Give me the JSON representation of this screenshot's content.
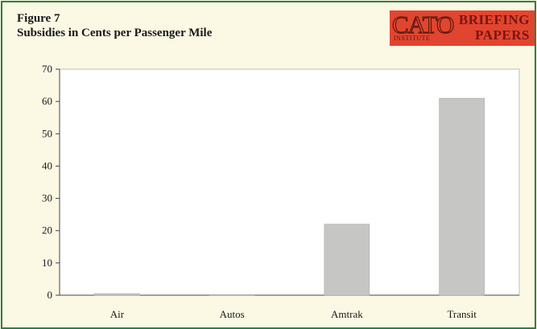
{
  "figure": {
    "number": "Figure 7",
    "title": "Subsidies in Cents per Passenger Mile"
  },
  "logo": {
    "name": "CATO",
    "institute": "INSTITUTE",
    "line1": "BRIEFING",
    "line2": "PAPERS",
    "color": "#e2452f"
  },
  "chart_data": {
    "type": "bar",
    "title": "Subsidies in Cents per Passenger Mile",
    "categories": [
      "Air",
      "Autos",
      "Amtrak",
      "Transit"
    ],
    "values": [
      0.5,
      0.2,
      22,
      61
    ],
    "xlabel": "",
    "ylabel": "",
    "ylim": [
      0,
      70
    ],
    "yticks": [
      0,
      10,
      20,
      30,
      40,
      50,
      60,
      70
    ],
    "grid": false,
    "legend": "none",
    "bar_color": "#c6c6c4",
    "plot_background": "#ffffff"
  }
}
